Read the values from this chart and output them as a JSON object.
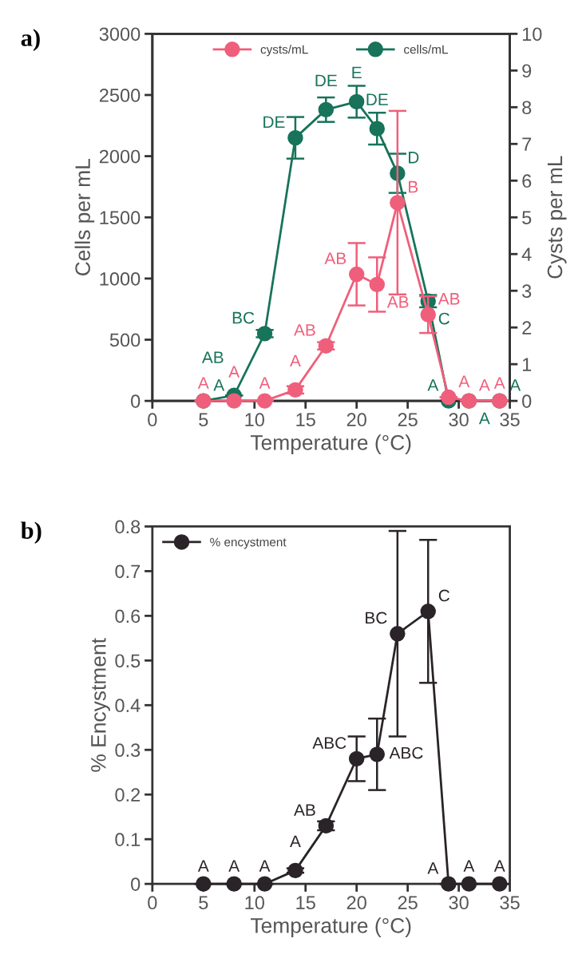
{
  "chart_data": [
    {
      "type": "line",
      "title": "a)",
      "xlabel": "Temperature (°C)",
      "ylabel": "Cells per mL",
      "y2label": "Cysts per mL",
      "xlim": [
        0,
        35
      ],
      "xticks": [
        0,
        5,
        10,
        15,
        20,
        25,
        30,
        35
      ],
      "ylim": [
        0,
        3000
      ],
      "yticks": [
        0,
        500,
        1000,
        1500,
        2000,
        2500,
        3000
      ],
      "y2lim": [
        0,
        10
      ],
      "y2ticks": [
        0,
        1,
        2,
        3,
        4,
        5,
        6,
        7,
        8,
        9,
        10
      ],
      "marker": "circle",
      "line_style": "solid",
      "grid": false,
      "legend": "top",
      "x": [
        5,
        8,
        11,
        14,
        17,
        20,
        22,
        24,
        27,
        29,
        31,
        34
      ],
      "series": [
        {
          "name": "cysts/mL",
          "color": "#ef5f7b",
          "axis": "y2",
          "values": [
            0,
            0,
            0,
            0.3,
            1.5,
            3.45,
            3.17,
            5.4,
            2.35,
            0.1,
            0,
            0
          ],
          "errors": [
            null,
            null,
            null,
            0.1,
            0.1,
            0.85,
            0.74,
            2.5,
            0.5,
            null,
            null,
            null
          ],
          "value_labels": [
            "A",
            "A",
            "A",
            "A",
            "AB",
            "AB",
            "AB",
            "B",
            "AB",
            "A",
            "A",
            "A"
          ]
        },
        {
          "name": "cells/mL",
          "color": "#17735a",
          "values": [
            0,
            45,
            550,
            2150,
            2380,
            2445,
            2225,
            1860,
            815,
            0,
            0,
            0
          ],
          "errors": [
            null,
            null,
            30,
            170,
            100,
            130,
            130,
            160,
            50,
            null,
            null,
            null
          ],
          "value_labels": [
            "A",
            "AB",
            "BC",
            "DE",
            "DE",
            "E",
            "DE",
            "D",
            "C",
            "A",
            "A",
            "A"
          ]
        }
      ]
    },
    {
      "type": "line",
      "title": "b)",
      "xlabel": "Temperature (°C)",
      "ylabel": "% Encystment",
      "xlim": [
        0,
        35
      ],
      "xticks": [
        0,
        5,
        10,
        15,
        20,
        25,
        30,
        35
      ],
      "ylim": [
        0,
        0.8
      ],
      "yticks": [
        0,
        0.1,
        0.2,
        0.3,
        0.4,
        0.5,
        0.6,
        0.7,
        0.8
      ],
      "marker": "circle",
      "line_style": "solid",
      "grid": false,
      "legend": "top left",
      "x": [
        5,
        8,
        11,
        14,
        17,
        20,
        22,
        24,
        27,
        29,
        31,
        34
      ],
      "series": [
        {
          "name": "% encystment",
          "color": "#2a2428",
          "values": [
            0,
            0,
            0,
            0.03,
            0.13,
            0.28,
            0.29,
            0.56,
            0.61,
            0,
            0,
            0
          ],
          "errors": [
            null,
            null,
            null,
            0.005,
            0.01,
            0.05,
            0.08,
            0.23,
            0.16,
            null,
            null,
            null
          ],
          "value_labels": [
            "A",
            "A",
            "A",
            "A",
            "AB",
            "ABC",
            "ABC",
            "BC",
            "C",
            "A",
            "A",
            "A"
          ]
        }
      ]
    }
  ]
}
